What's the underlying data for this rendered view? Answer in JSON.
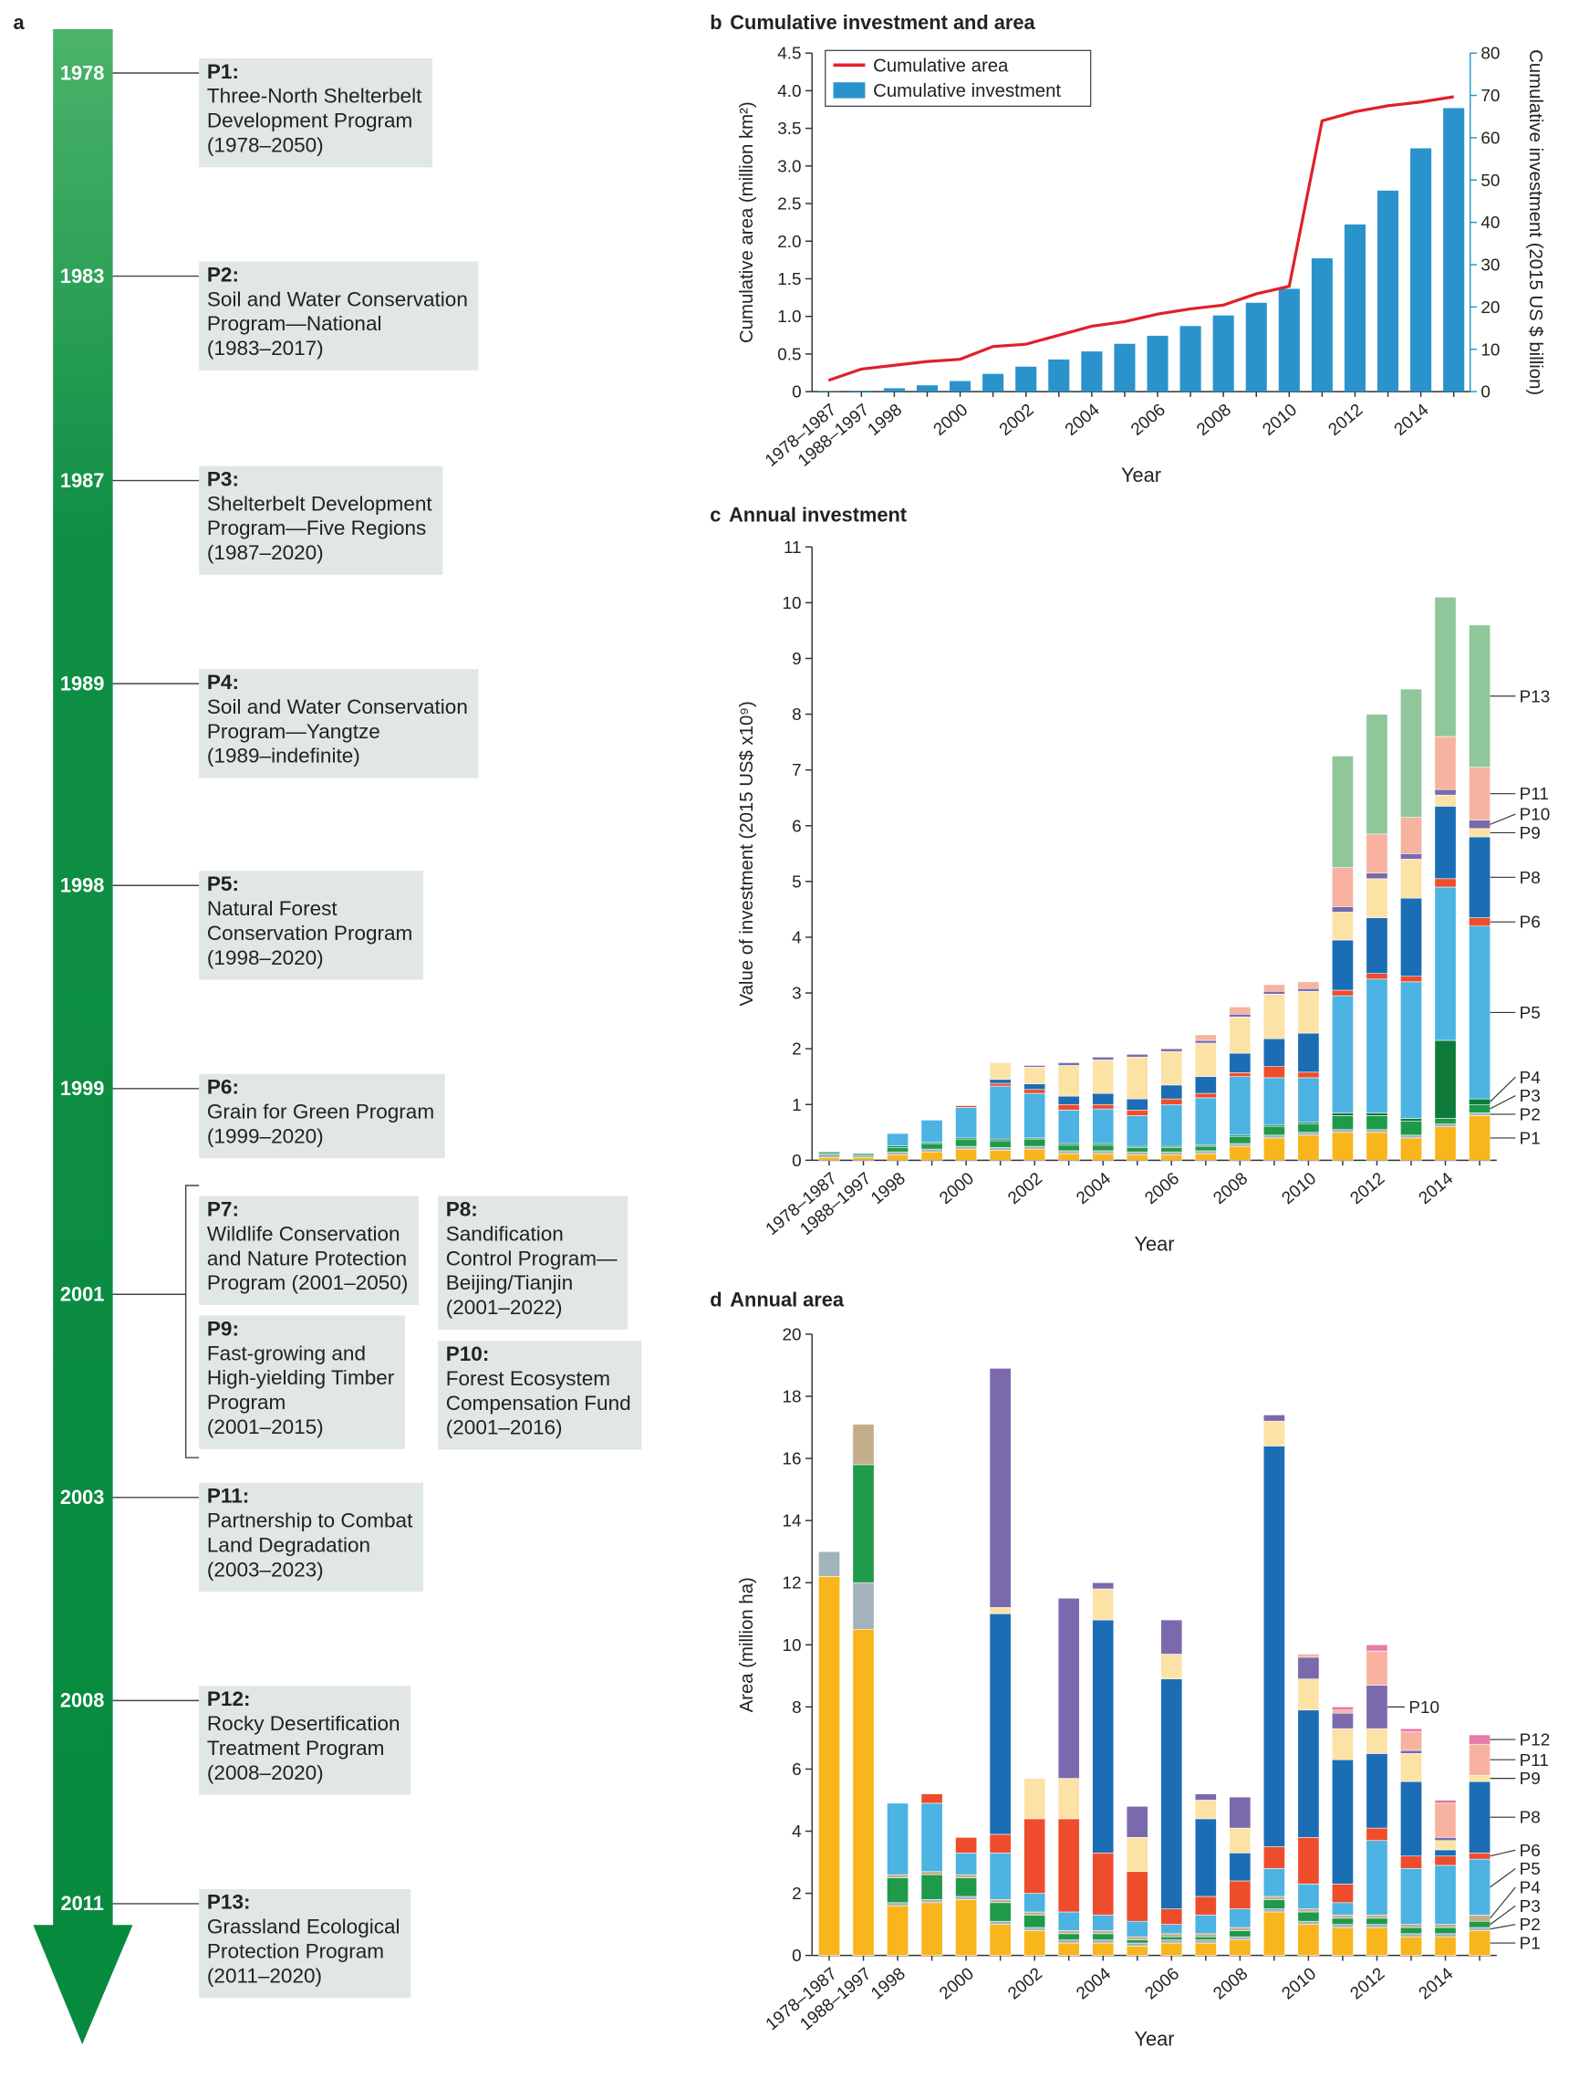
{
  "timeline": {
    "panel": "a",
    "entries": [
      {
        "year": "1978",
        "programs": [
          {
            "id": "P1:",
            "lines": [
              "Three-North Shelterbelt",
              "Development Program",
              "(1978–2050)"
            ]
          }
        ]
      },
      {
        "year": "1983",
        "programs": [
          {
            "id": "P2:",
            "lines": [
              "Soil and Water Conservation",
              "Program—National",
              "(1983–2017)"
            ]
          }
        ]
      },
      {
        "year": "1987",
        "programs": [
          {
            "id": "P3:",
            "lines": [
              "Shelterbelt Development",
              "Program—Five Regions",
              "(1987–2020)"
            ]
          }
        ]
      },
      {
        "year": "1989",
        "programs": [
          {
            "id": "P4:",
            "lines": [
              "Soil and Water Conservation",
              "Program—Yangtze",
              "(1989–indefinite)"
            ]
          }
        ]
      },
      {
        "year": "1998",
        "programs": [
          {
            "id": "P5:",
            "lines": [
              "Natural Forest",
              "Conservation Program",
              "(1998–2020)"
            ]
          }
        ]
      },
      {
        "year": "1999",
        "programs": [
          {
            "id": "P6:",
            "lines": [
              "Grain for Green Program",
              "(1999–2020)"
            ]
          }
        ]
      },
      {
        "year": "2001",
        "programs": [
          {
            "id": "P7:",
            "lines": [
              "Wildlife Conservation",
              "and Nature Protection",
              "Program (2001–2050)"
            ]
          },
          {
            "id": "P8:",
            "lines": [
              "Sandification",
              "Control Program—",
              "Beijing/Tianjin",
              "(2001–2022)"
            ]
          },
          {
            "id": "P9:",
            "lines": [
              "Fast-growing and",
              "High-yielding Timber",
              "Program",
              "(2001–2015)"
            ]
          },
          {
            "id": "P10:",
            "lines": [
              "Forest Ecosystem",
              "Compensation Fund",
              "(2001–2016)"
            ]
          }
        ]
      },
      {
        "year": "2003",
        "programs": [
          {
            "id": "P11:",
            "lines": [
              "Partnership to Combat",
              "Land Degradation",
              "(2003–2023)"
            ]
          }
        ]
      },
      {
        "year": "2008",
        "programs": [
          {
            "id": "P12:",
            "lines": [
              "Rocky Desertification",
              "Treatment Program",
              "(2008–2020)"
            ]
          }
        ]
      },
      {
        "year": "2011",
        "programs": [
          {
            "id": "P13:",
            "lines": [
              "Grassland Ecological",
              "Protection Program",
              "(2011–2020)"
            ]
          }
        ]
      }
    ]
  },
  "chart_data": [
    {
      "type": "combo",
      "panel": "b",
      "title": "Cumulative investment and area",
      "xlabel": "Year",
      "ylabel": "Cumulative area (million km²)",
      "y2label": "Cumulative investment (2015 US $ billion)",
      "categories": [
        "1978–1987",
        "1988–1997",
        "1998",
        null,
        "2000",
        null,
        "2002",
        null,
        "2004",
        null,
        "2006",
        null,
        "2008",
        null,
        "2010",
        null,
        "2012",
        null,
        "2014",
        null
      ],
      "ylim": [
        0,
        4.5
      ],
      "yticks": [
        0,
        0.5,
        {
          "value": 1,
          "label": "1.0"
        },
        1.5,
        {
          "value": 2,
          "label": "2.0"
        },
        2.5,
        {
          "value": 3,
          "label": "3.0"
        },
        3.5,
        {
          "value": 4,
          "label": "4.0"
        },
        4.5
      ],
      "y2lim": [
        0,
        80
      ],
      "y2ticks": [
        0,
        10,
        20,
        30,
        40,
        50,
        60,
        70,
        80
      ],
      "legend": "top-left",
      "series": [
        {
          "name": "Cumulative area",
          "type": "line",
          "color": "#e0202a",
          "values": [
            0.15,
            0.3,
            0.35,
            0.4,
            0.43,
            0.6,
            0.63,
            0.75,
            0.87,
            0.93,
            1.03,
            1.1,
            1.15,
            1.3,
            1.4,
            3.6,
            3.72,
            3.8,
            3.85,
            3.92
          ]
        },
        {
          "name": "Cumulative investment",
          "type": "bar",
          "axis": "y2",
          "color": "#2a93cc",
          "values": [
            0.1,
            0.2,
            0.8,
            1.5,
            2.5,
            4.2,
            5.9,
            7.6,
            9.5,
            11.3,
            13.2,
            15.5,
            18,
            21,
            24.3,
            31.5,
            39.5,
            47.5,
            57.5,
            67
          ]
        }
      ]
    },
    {
      "type": "stacked_bar",
      "panel": "c",
      "title": "Annual investment",
      "xlabel": "Year",
      "ylabel": "Value of investment (2015 US$ x10⁹)",
      "categories": [
        "1978–1987",
        "1988–1997",
        "1998",
        null,
        "2000",
        null,
        "2002",
        null,
        "2004",
        null,
        "2006",
        null,
        "2008",
        null,
        "2010",
        null,
        "2012",
        null,
        "2014",
        null
      ],
      "ylim": [
        0,
        11
      ],
      "yticks": [
        0,
        1,
        2,
        3,
        4,
        5,
        6,
        7,
        8,
        9,
        10,
        11
      ],
      "series": [
        {
          "name": "P1",
          "color": "#f8b51c",
          "values": [
            0.05,
            0.05,
            0.1,
            0.15,
            0.2,
            0.18,
            0.2,
            0.12,
            0.12,
            0.1,
            0.1,
            0.12,
            0.25,
            0.4,
            0.45,
            0.5,
            0.5,
            0.4,
            0.6,
            0.8
          ]
        },
        {
          "name": "P2",
          "color": "#a3b3bc",
          "values": [
            0.07,
            0.04,
            0.05,
            0.05,
            0.05,
            0.05,
            0.05,
            0.05,
            0.05,
            0.05,
            0.05,
            0.05,
            0.05,
            0.05,
            0.05,
            0.05,
            0.05,
            0.05,
            0.05,
            0.05
          ]
        },
        {
          "name": "P3",
          "color": "#1f9a4b",
          "values": [
            0.03,
            0.03,
            0.08,
            0.1,
            0.12,
            0.12,
            0.13,
            0.1,
            0.1,
            0.08,
            0.08,
            0.08,
            0.12,
            0.15,
            0.15,
            0.25,
            0.25,
            0.25,
            0.1,
            0.15
          ]
        },
        {
          "name": "P4",
          "color": "#0d7a3a",
          "values": [
            0,
            0,
            0.03,
            0.02,
            0.03,
            0.03,
            0.02,
            0.03,
            0.03,
            0.02,
            0.02,
            0.02,
            0.03,
            0.03,
            0.03,
            0.05,
            0.05,
            0.05,
            1.4,
            0.1
          ]
        },
        {
          "name": "P5",
          "color": "#4cb3e2",
          "values": [
            0,
            0,
            0.22,
            0.4,
            0.55,
            0.95,
            0.8,
            0.6,
            0.62,
            0.55,
            0.75,
            0.85,
            1.05,
            0.85,
            0.8,
            2.1,
            2.4,
            2.45,
            2.75,
            3.1
          ]
        },
        {
          "name": "P6",
          "color": "#ee4d2c",
          "values": [
            0,
            0,
            0,
            0,
            0.03,
            0.05,
            0.07,
            0.1,
            0.08,
            0.1,
            0.1,
            0.08,
            0.07,
            0.2,
            0.1,
            0.1,
            0.1,
            0.1,
            0.15,
            0.15
          ]
        },
        {
          "name": "P8",
          "color": "#1b6db5",
          "values": [
            0,
            0,
            0,
            0,
            0,
            0.07,
            0.1,
            0.15,
            0.2,
            0.2,
            0.25,
            0.3,
            0.35,
            0.5,
            0.7,
            0.9,
            1.0,
            1.4,
            1.3,
            1.45
          ]
        },
        {
          "name": "P9",
          "color": "#fde2a6",
          "values": [
            0,
            0,
            0,
            0,
            0,
            0.3,
            0.3,
            0.55,
            0.6,
            0.75,
            0.6,
            0.6,
            0.65,
            0.8,
            0.75,
            0.5,
            0.7,
            0.7,
            0.2,
            0.15
          ]
        },
        {
          "name": "P10",
          "color": "#7a6aad",
          "values": [
            0,
            0,
            0,
            0,
            0,
            0,
            0.03,
            0.05,
            0.05,
            0.05,
            0.05,
            0.05,
            0.05,
            0.05,
            0.05,
            0.1,
            0.1,
            0.1,
            0.1,
            0.15
          ]
        },
        {
          "name": "P11",
          "color": "#f7b3a0",
          "values": [
            0,
            0,
            0,
            0,
            0,
            0,
            0,
            0,
            0,
            0,
            0,
            0.1,
            0.13,
            0.12,
            0.12,
            0.7,
            0.7,
            0.65,
            0.95,
            0.95
          ]
        },
        {
          "name": "P13",
          "color": "#8fc79b",
          "values": [
            0,
            0,
            0,
            0,
            0,
            0,
            0,
            0,
            0,
            0,
            0,
            0,
            0,
            0,
            0,
            2.0,
            2.15,
            2.3,
            2.5,
            2.55
          ]
        }
      ]
    },
    {
      "type": "stacked_bar",
      "panel": "d",
      "title": "Annual area",
      "xlabel": "Year",
      "ylabel": "Area (million ha)",
      "categories": [
        "1978–1987",
        "1988–1997",
        "1998",
        null,
        "2000",
        null,
        "2002",
        null,
        "2004",
        null,
        "2006",
        null,
        "2008",
        null,
        "2010",
        null,
        "2012",
        null,
        "2014",
        null
      ],
      "ylim": [
        0,
        20
      ],
      "yticks": [
        0,
        2,
        4,
        6,
        8,
        10,
        12,
        14,
        16,
        18,
        20
      ],
      "series": [
        {
          "name": "P1",
          "color": "#f8b51c",
          "values": [
            12.2,
            10.5,
            1.6,
            1.7,
            1.8,
            1.0,
            0.8,
            0.4,
            0.4,
            0.3,
            0.4,
            0.4,
            0.5,
            1.4,
            1.0,
            0.9,
            0.9,
            0.6,
            0.6,
            0.8
          ]
        },
        {
          "name": "P2",
          "color": "#a3b3bc",
          "values": [
            0.8,
            1.5,
            0.1,
            0.1,
            0.1,
            0.1,
            0.1,
            0.1,
            0.1,
            0.1,
            0.1,
            0.1,
            0.1,
            0.1,
            0.1,
            0.1,
            0.1,
            0.1,
            0.1,
            0.1
          ]
        },
        {
          "name": "P3",
          "color": "#1f9a4b",
          "values": [
            0,
            3.8,
            0.8,
            0.8,
            0.6,
            0.6,
            0.4,
            0.2,
            0.2,
            0.1,
            0.1,
            0.1,
            0.2,
            0.3,
            0.3,
            0.2,
            0.2,
            0.2,
            0.2,
            0.2
          ]
        },
        {
          "name": "P4",
          "color": "#c4ae8a",
          "values": [
            0,
            1.3,
            0.1,
            0.1,
            0.1,
            0.1,
            0.1,
            0.1,
            0.1,
            0.1,
            0.1,
            0.1,
            0.1,
            0.1,
            0.1,
            0.1,
            0.1,
            0.1,
            0.1,
            0.2
          ]
        },
        {
          "name": "P5",
          "color": "#4cb3e2",
          "values": [
            0,
            0,
            2.3,
            2.2,
            0.7,
            1.5,
            0.6,
            0.6,
            0.5,
            0.5,
            0.3,
            0.6,
            0.6,
            0.9,
            0.8,
            0.4,
            2.4,
            1.8,
            1.9,
            1.8
          ]
        },
        {
          "name": "P6",
          "color": "#ee4d2c",
          "values": [
            0,
            0,
            0,
            0.3,
            0.5,
            0.6,
            2.4,
            3.0,
            2.0,
            1.6,
            0.5,
            0.6,
            0.9,
            0.7,
            1.5,
            0.6,
            0.4,
            0.4,
            0.3,
            0.2
          ]
        },
        {
          "name": "P8",
          "color": "#1b6db5",
          "values": [
            0,
            0,
            0,
            0,
            0,
            7.1,
            0,
            0,
            7.5,
            0,
            7.4,
            2.5,
            0.9,
            12.9,
            4.1,
            4.0,
            2.4,
            2.4,
            0.2,
            2.3
          ]
        },
        {
          "name": "P9",
          "color": "#fde2a6",
          "values": [
            0,
            0,
            0,
            0,
            0,
            0.2,
            1.3,
            1.3,
            1.0,
            1.1,
            0.8,
            0.6,
            0.8,
            0.8,
            1.0,
            1.0,
            0.8,
            0.9,
            0.3,
            0.2
          ]
        },
        {
          "name": "P10",
          "color": "#7a6aad",
          "values": [
            0,
            0,
            0,
            0,
            0,
            7.7,
            0,
            5.8,
            0.2,
            1.0,
            1.1,
            0.2,
            1.0,
            0.2,
            0.7,
            0.5,
            1.4,
            0.1,
            0.1,
            0
          ]
        },
        {
          "name": "P11",
          "color": "#f7b3a0",
          "values": [
            0,
            0,
            0,
            0,
            0,
            0,
            0,
            0,
            0,
            0,
            0,
            0,
            0,
            0,
            0.1,
            0.1,
            1.1,
            0.6,
            1.1,
            1.0
          ]
        },
        {
          "name": "P12",
          "color": "#e77aa7",
          "values": [
            0,
            0,
            0,
            0,
            0,
            0,
            0,
            0,
            0,
            0,
            0,
            0,
            0,
            0,
            0,
            0.1,
            0.2,
            0.1,
            0.1,
            0.3
          ]
        }
      ]
    }
  ]
}
